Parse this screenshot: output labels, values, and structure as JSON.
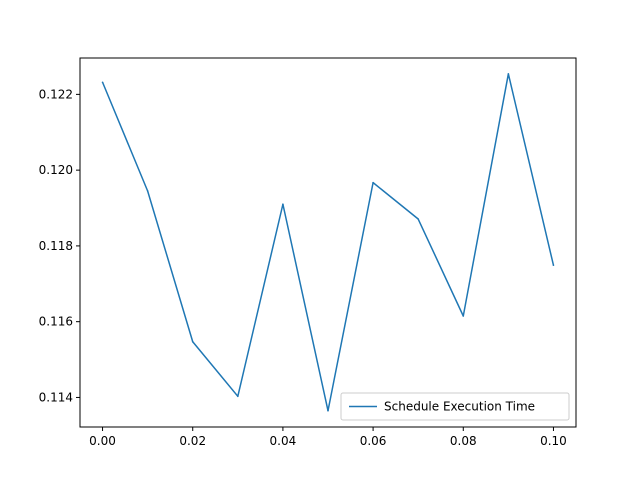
{
  "chart_data": {
    "type": "line",
    "title": "",
    "xlabel": "",
    "ylabel": "",
    "xlim": [
      -0.005,
      0.105
    ],
    "ylim": [
      0.11322,
      0.12296
    ],
    "x_ticks": [
      0.0,
      0.02,
      0.04,
      0.06,
      0.08,
      0.1
    ],
    "x_tick_labels": [
      "0.00",
      "0.02",
      "0.04",
      "0.06",
      "0.08",
      "0.10"
    ],
    "y_ticks": [
      0.114,
      0.116,
      0.118,
      0.12,
      0.122
    ],
    "y_tick_labels": [
      "0.114",
      "0.116",
      "0.118",
      "0.120",
      "0.122"
    ],
    "grid": false,
    "legend_position": "lower-right",
    "x": [
      0.0,
      0.01,
      0.02,
      0.03,
      0.04,
      0.05,
      0.06,
      0.07,
      0.08,
      0.09,
      0.1
    ],
    "series": [
      {
        "name": "Schedule Execution Time",
        "color": "#1f77b4",
        "values": [
          0.12232,
          0.11945,
          0.11547,
          0.11403,
          0.1191,
          0.11365,
          0.11967,
          0.11871,
          0.11615,
          0.12254,
          0.11749
        ]
      }
    ]
  }
}
